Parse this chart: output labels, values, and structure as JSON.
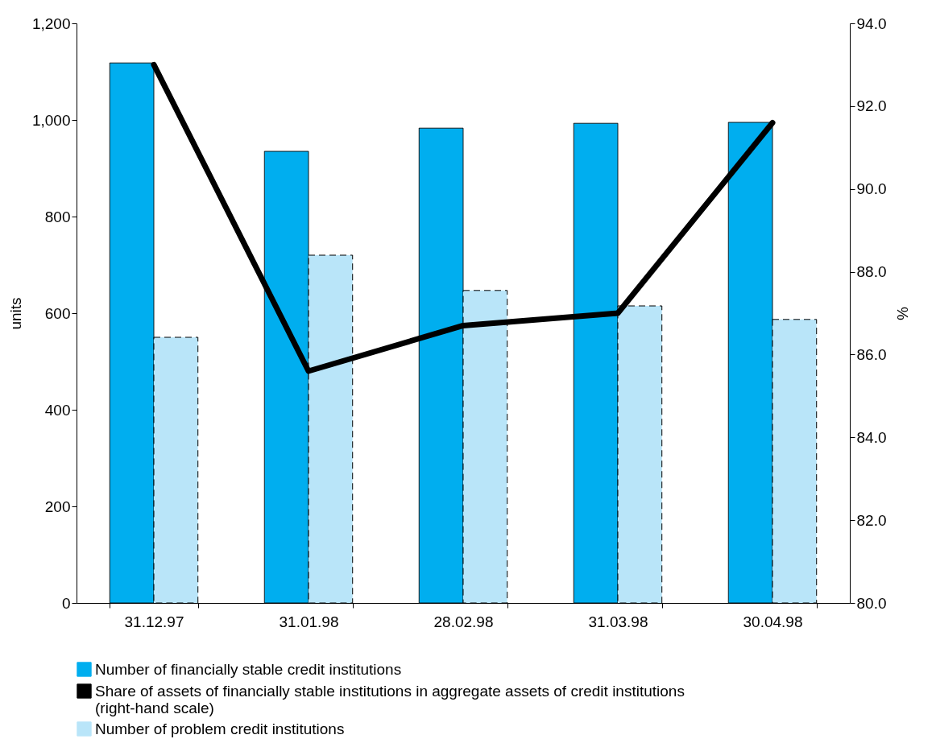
{
  "chart_data": {
    "type": "bar",
    "categories": [
      "31.12.97",
      "31.01.98",
      "28.02.98",
      "31.03.98",
      "30.04.98"
    ],
    "ylabel": "units",
    "y2label": "%",
    "ylim": [
      0,
      1200
    ],
    "yticks": [
      0,
      {
        "value": 200,
        "label": "200"
      },
      {
        "value": 400,
        "label": "400"
      },
      {
        "value": 600,
        "label": "600"
      },
      {
        "value": 800,
        "label": "800"
      },
      {
        "value": 1000,
        "label": "1,000"
      },
      {
        "value": 1200,
        "label": "1,200"
      }
    ],
    "y2lim": [
      80,
      94
    ],
    "y2ticks": [
      {
        "value": 80,
        "label": "80.0"
      },
      {
        "value": 82,
        "label": "82.0"
      },
      {
        "value": 84,
        "label": "84.0"
      },
      {
        "value": 86,
        "label": "86.0"
      },
      {
        "value": 88,
        "label": "88.0"
      },
      {
        "value": 90,
        "label": "90.0"
      },
      {
        "value": 92,
        "label": "92.0"
      },
      {
        "value": 94,
        "label": "94.0"
      }
    ],
    "series": [
      {
        "name": "Number of financially stable credit institutions",
        "color": "#00aeef",
        "values": [
          1118,
          935,
          983,
          993,
          995
        ]
      },
      {
        "name": "Share of assets of financially stable institutions in aggregate assets of credit institutions (right-hand scale)",
        "type": "line",
        "axis": "y2",
        "color": "#000000",
        "values": [
          93.0,
          85.6,
          86.7,
          87.0,
          91.6
        ]
      },
      {
        "name": "Number of problem credit institutions",
        "color": "#b9e5f9",
        "line_style": "dashed",
        "values": [
          550,
          720,
          647,
          615,
          587
        ]
      }
    ],
    "legend": "bottom",
    "grid": false,
    "marker": "none"
  }
}
